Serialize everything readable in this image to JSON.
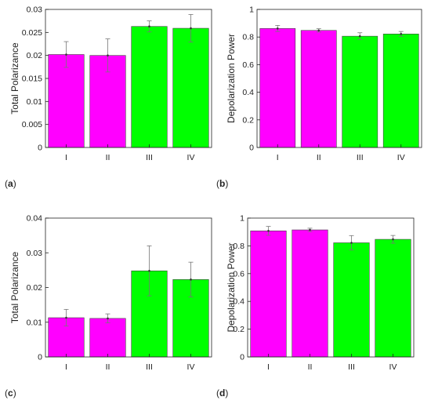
{
  "colors": {
    "group1": "#ff00ff",
    "group2": "#00ff00",
    "error_bar": "#777777",
    "axis": "#222222"
  },
  "charts": [
    {
      "panel": "(a)",
      "chart_data": {
        "type": "bar",
        "categories": [
          "I",
          "II",
          "III",
          "IV"
        ],
        "values": [
          0.0202,
          0.02,
          0.0263,
          0.0259
        ],
        "errors": [
          0.0028,
          0.0036,
          0.0012,
          0.003
        ],
        "bar_colors": [
          "#ff00ff",
          "#ff00ff",
          "#00ff00",
          "#00ff00"
        ],
        "ylabel": "Total Polarizance",
        "ylim": [
          0,
          0.03
        ],
        "yticks": [
          0,
          0.005,
          0.01,
          0.015,
          0.02,
          0.025,
          0.03
        ],
        "ytick_labels": [
          "0",
          "0.005",
          "0.01",
          "0.015",
          "0.02",
          "0.025",
          "0.03"
        ]
      }
    },
    {
      "panel": "(b)",
      "chart_data": {
        "type": "bar",
        "categories": [
          "I",
          "II",
          "III",
          "IV"
        ],
        "values": [
          0.862,
          0.848,
          0.806,
          0.822
        ],
        "errors": [
          0.022,
          0.012,
          0.025,
          0.018
        ],
        "bar_colors": [
          "#ff00ff",
          "#ff00ff",
          "#00ff00",
          "#00ff00"
        ],
        "ylabel": "Depolarization Power",
        "ylim": [
          0,
          1
        ],
        "yticks": [
          0,
          0.2,
          0.4,
          0.6,
          0.8,
          1
        ],
        "ytick_labels": [
          "0",
          "0.2",
          "0.4",
          "0.6",
          "0.8",
          "1"
        ]
      }
    },
    {
      "panel": "(c)",
      "chart_data": {
        "type": "bar",
        "categories": [
          "I",
          "II",
          "III",
          "IV"
        ],
        "values": [
          0.0113,
          0.0111,
          0.0248,
          0.0223
        ],
        "errors": [
          0.0024,
          0.0013,
          0.0072,
          0.005
        ],
        "bar_colors": [
          "#ff00ff",
          "#ff00ff",
          "#00ff00",
          "#00ff00"
        ],
        "ylabel": "Total Polarizance",
        "ylim": [
          0,
          0.04
        ],
        "yticks": [
          0,
          0.01,
          0.02,
          0.03,
          0.04
        ],
        "ytick_labels": [
          "0",
          "0.01",
          "0.02",
          "0.03",
          "0.04"
        ]
      }
    },
    {
      "panel": "(d)",
      "chart_data": {
        "type": "bar",
        "categories": [
          "I",
          "II",
          "III",
          "IV"
        ],
        "values": [
          0.908,
          0.915,
          0.822,
          0.847
        ],
        "errors": [
          0.032,
          0.012,
          0.052,
          0.028
        ],
        "bar_colors": [
          "#ff00ff",
          "#ff00ff",
          "#00ff00",
          "#00ff00"
        ],
        "ylabel": "Depolarization Power",
        "ylim": [
          0,
          1
        ],
        "yticks": [
          0,
          0.2,
          0.4,
          0.6,
          0.8,
          1
        ],
        "ytick_labels": [
          "0",
          "0.2",
          "0.4",
          "0.6",
          "0.8",
          "1"
        ]
      }
    }
  ]
}
